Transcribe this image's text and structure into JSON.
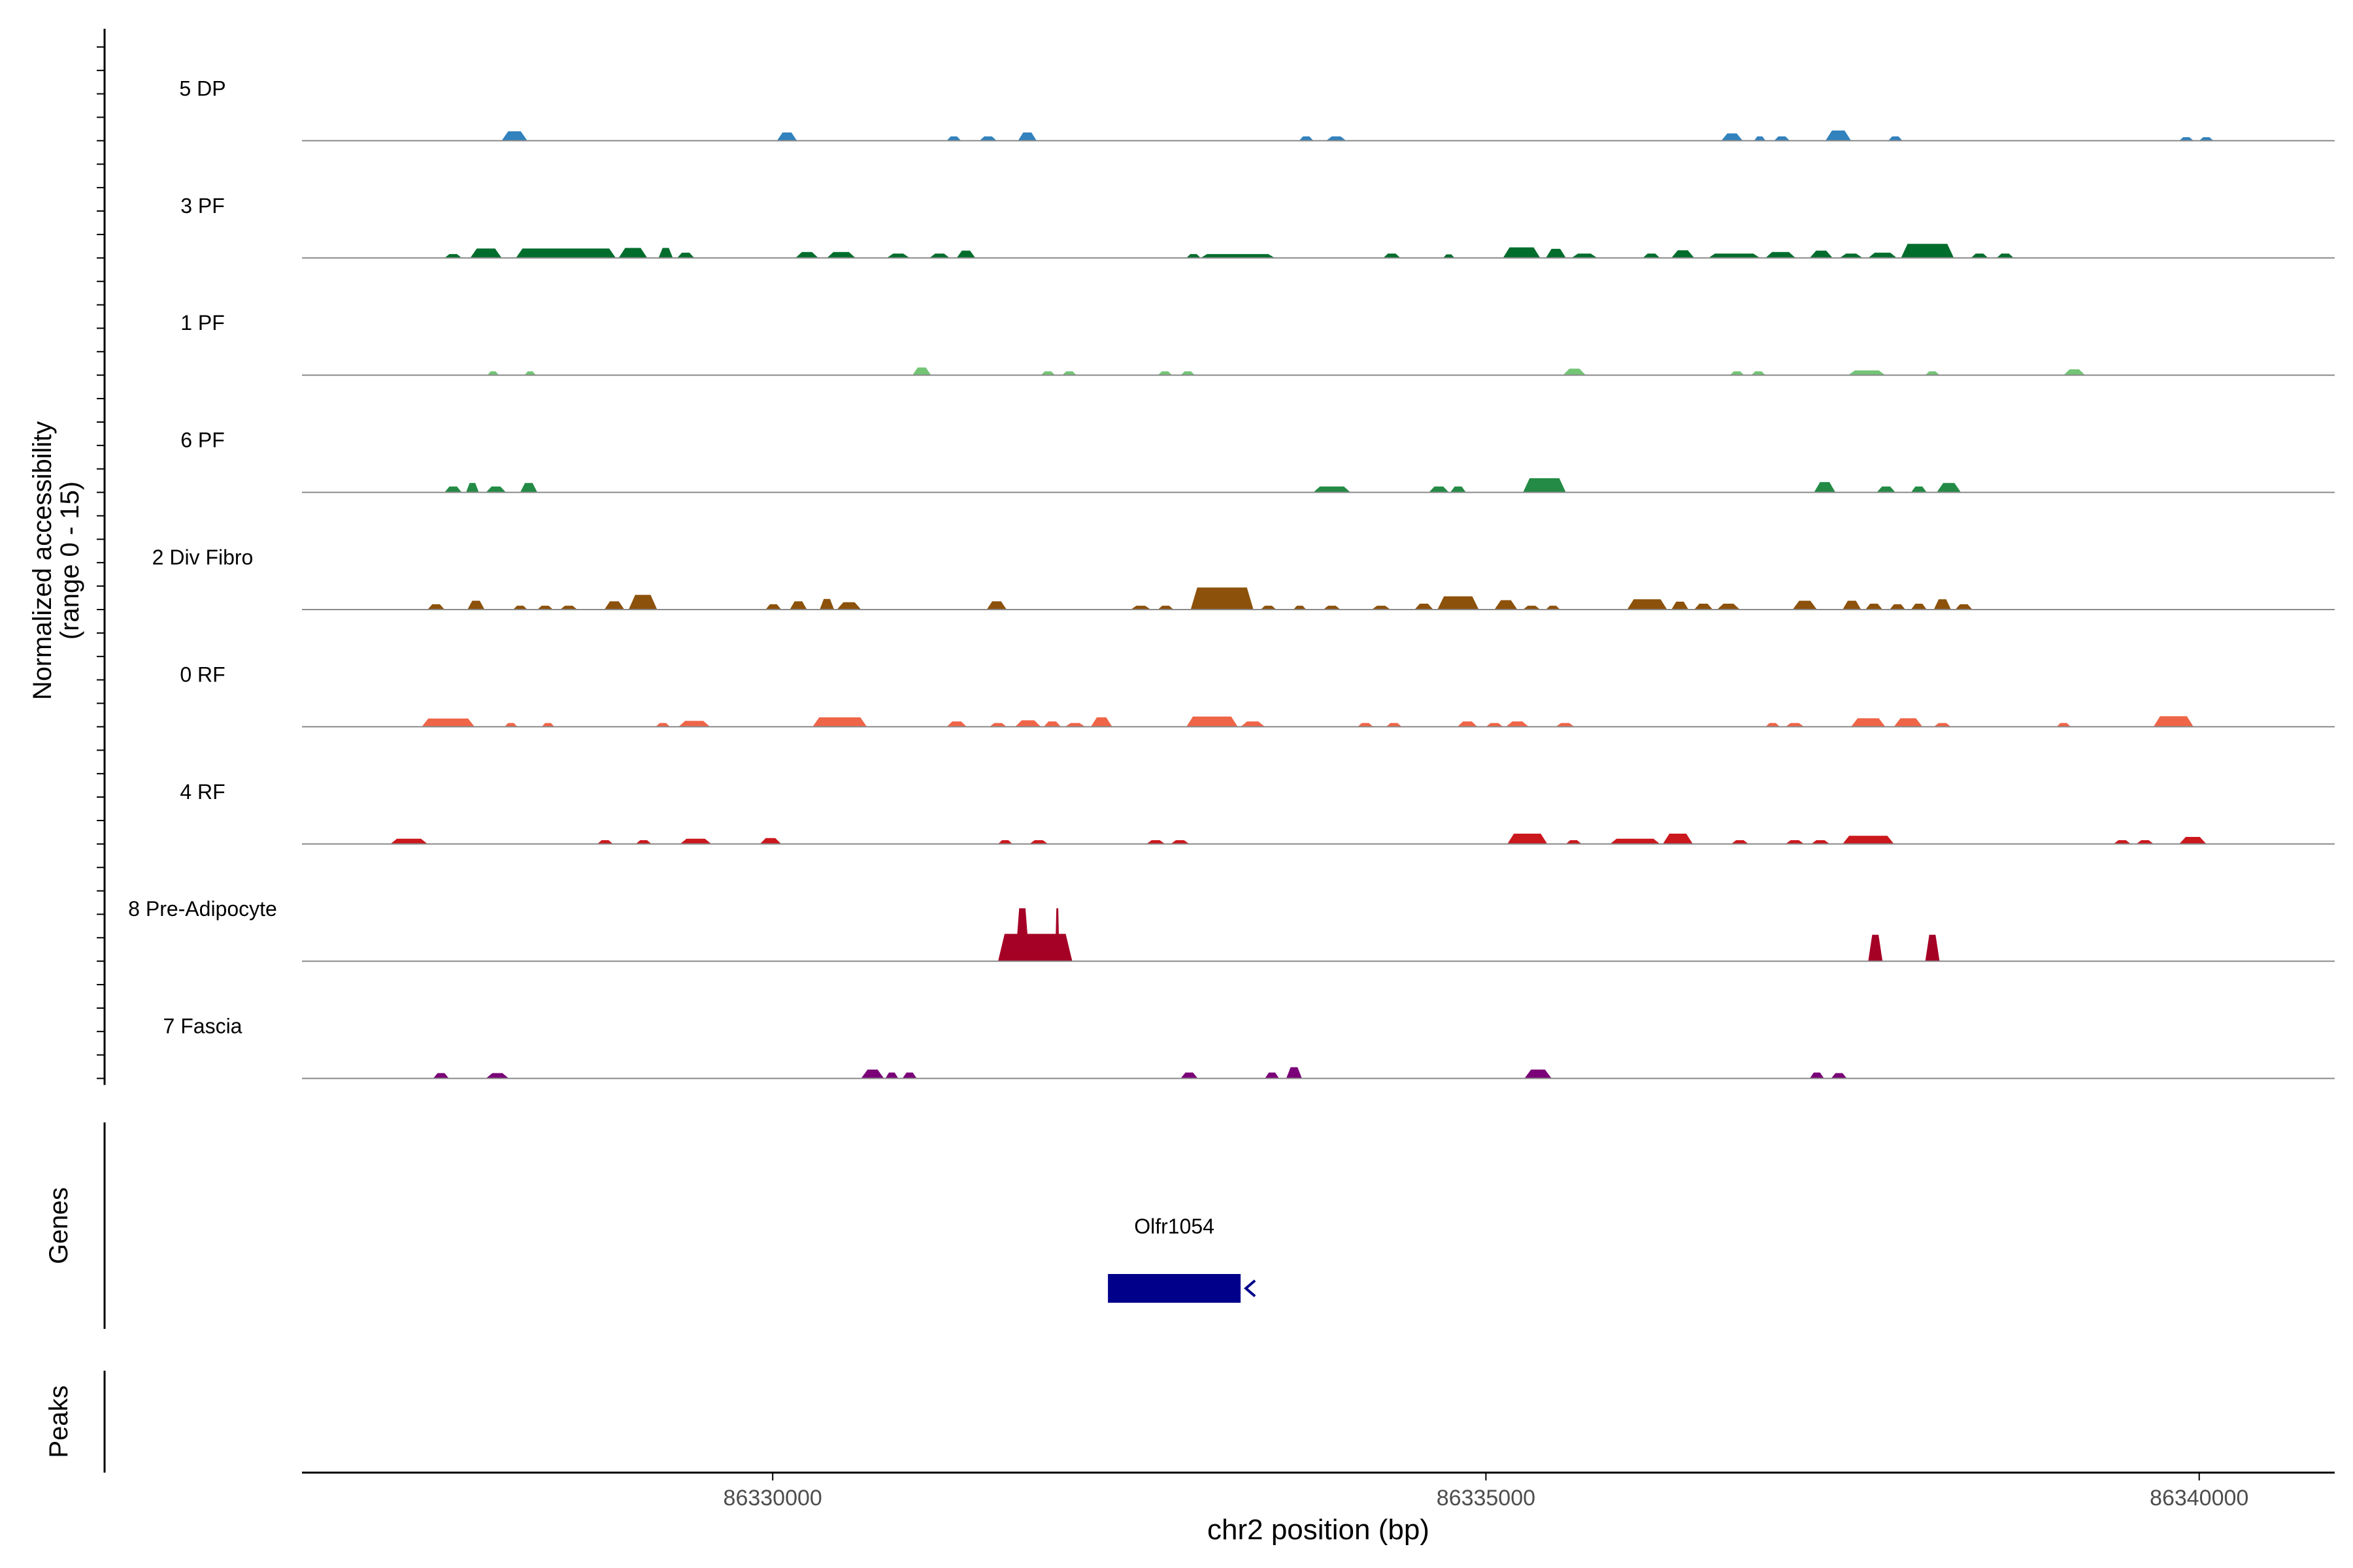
{
  "chart_data": {
    "type": "area",
    "ylabel_line1": "Normalized accessibility",
    "ylabel_line2": "(range 0 - 15)",
    "xlabel": "chr2 position (bp)",
    "xlim": [
      86326700,
      86340950
    ],
    "x_ticks": [
      86330000,
      86335000,
      86340000
    ],
    "x_tick_labels": [
      "86330000",
      "86335000",
      "86340000"
    ],
    "y_range": [
      0,
      15
    ],
    "genes_label": "Genes",
    "peaks_label": "Peaks",
    "genes": [
      {
        "name": "Olfr1054",
        "start": 86332350,
        "end": 86333280,
        "strand": "-",
        "color": "#00008b"
      }
    ],
    "tracks": [
      {
        "name": "5 DP",
        "color": "#3182bd",
        "peaks": [
          [
            86328100,
            86328280,
            3.2
          ],
          [
            86330030,
            86330170,
            2.8
          ],
          [
            86331220,
            86331320,
            1.5
          ],
          [
            86331450,
            86331570,
            1.5
          ],
          [
            86331720,
            86331850,
            2.8
          ],
          [
            86333690,
            86333790,
            1.5
          ],
          [
            86333880,
            86334020,
            1.5
          ],
          [
            86336650,
            86336800,
            2.5
          ],
          [
            86336880,
            86336960,
            1.5
          ],
          [
            86337020,
            86337130,
            1.5
          ],
          [
            86337380,
            86337560,
            3.5
          ],
          [
            86337820,
            86337920,
            1.5
          ],
          [
            86339860,
            86339960,
            1.2
          ],
          [
            86340000,
            86340100,
            1.2
          ]
        ]
      },
      {
        "name": "3 PF",
        "color": "#006d2c",
        "peaks": [
          [
            86327700,
            86327820,
            1.3
          ],
          [
            86327880,
            86328100,
            3.2
          ],
          [
            86328200,
            86328900,
            3.2
          ],
          [
            86328920,
            86329120,
            3.4
          ],
          [
            86329200,
            86329300,
            3.4
          ],
          [
            86329330,
            86329450,
            1.8
          ],
          [
            86330160,
            86330320,
            2.0
          ],
          [
            86330380,
            86330580,
            2.0
          ],
          [
            86330800,
            86330960,
            1.5
          ],
          [
            86331100,
            86331240,
            1.5
          ],
          [
            86331290,
            86331420,
            2.5
          ],
          [
            86332900,
            86333000,
            1.3
          ],
          [
            86333000,
            86333520,
            1.3
          ],
          [
            86334280,
            86334400,
            1.5
          ],
          [
            86334700,
            86334780,
            1.2
          ],
          [
            86335120,
            86335380,
            3.6
          ],
          [
            86335420,
            86335560,
            3.1
          ],
          [
            86335600,
            86335780,
            1.5
          ],
          [
            86336100,
            86336220,
            1.5
          ],
          [
            86336300,
            86336460,
            2.6
          ],
          [
            86336560,
            86336920,
            1.5
          ],
          [
            86336960,
            86337170,
            2.0
          ],
          [
            86337270,
            86337430,
            2.5
          ],
          [
            86337480,
            86337640,
            1.5
          ],
          [
            86337680,
            86337880,
            1.8
          ],
          [
            86337910,
            86338280,
            4.8
          ],
          [
            86338400,
            86338520,
            1.5
          ],
          [
            86338580,
            86338700,
            1.5
          ]
        ]
      },
      {
        "name": "1 PF",
        "color": "#74c476",
        "peaks": [
          [
            86328000,
            86328080,
            1.3
          ],
          [
            86328260,
            86328340,
            1.3
          ],
          [
            86330980,
            86331110,
            2.6
          ],
          [
            86331880,
            86331980,
            1.3
          ],
          [
            86332030,
            86332130,
            1.3
          ],
          [
            86332700,
            86332800,
            1.3
          ],
          [
            86332860,
            86332960,
            1.3
          ],
          [
            86335540,
            86335700,
            2.2
          ],
          [
            86336710,
            86336810,
            1.3
          ],
          [
            86336860,
            86336960,
            1.3
          ],
          [
            86337540,
            86337800,
            1.6
          ],
          [
            86338080,
            86338180,
            1.3
          ],
          [
            86339050,
            86339200,
            2.0
          ]
        ]
      },
      {
        "name": "6 PF",
        "color": "#238b45",
        "peaks": [
          [
            86327700,
            86327820,
            2.0
          ],
          [
            86327850,
            86327940,
            3.2
          ],
          [
            86327990,
            86328130,
            2.0
          ],
          [
            86328230,
            86328350,
            3.2
          ],
          [
            86333790,
            86334050,
            2.0
          ],
          [
            86334600,
            86334740,
            2.0
          ],
          [
            86334750,
            86334860,
            2.0
          ],
          [
            86335260,
            86335560,
            4.8
          ],
          [
            86337300,
            86337450,
            3.5
          ],
          [
            86337740,
            86337870,
            2.0
          ],
          [
            86337980,
            86338090,
            2.0
          ],
          [
            86338160,
            86338330,
            3.2
          ]
        ]
      },
      {
        "name": "2 Div Fibro",
        "color": "#8c510a",
        "peaks": [
          [
            86327580,
            86327700,
            1.8
          ],
          [
            86327860,
            86327980,
            3.0
          ],
          [
            86328180,
            86328280,
            1.3
          ],
          [
            86328350,
            86328460,
            1.3
          ],
          [
            86328510,
            86328630,
            1.3
          ],
          [
            86328820,
            86328960,
            2.8
          ],
          [
            86328990,
            86329190,
            5.0
          ],
          [
            86329950,
            86330060,
            1.8
          ],
          [
            86330120,
            86330240,
            2.8
          ],
          [
            86330330,
            86330430,
            3.6
          ],
          [
            86330450,
            86330620,
            2.5
          ],
          [
            86331500,
            86331640,
            2.8
          ],
          [
            86332510,
            86332650,
            1.3
          ],
          [
            86332700,
            86332810,
            1.3
          ],
          [
            86332930,
            86333370,
            7.5
          ],
          [
            86333420,
            86333530,
            1.3
          ],
          [
            86333650,
            86333740,
            1.3
          ],
          [
            86333860,
            86333980,
            1.3
          ],
          [
            86334200,
            86334330,
            1.3
          ],
          [
            86334500,
            86334630,
            2.0
          ],
          [
            86334660,
            86334950,
            4.5
          ],
          [
            86335060,
            86335220,
            3.2
          ],
          [
            86335260,
            86335380,
            1.3
          ],
          [
            86335420,
            86335520,
            1.3
          ],
          [
            86335990,
            86336270,
            3.5
          ],
          [
            86336300,
            86336420,
            2.7
          ],
          [
            86336460,
            86336590,
            2.0
          ],
          [
            86336620,
            86336780,
            2.0
          ],
          [
            86337150,
            86337320,
            3.0
          ],
          [
            86337500,
            86337630,
            3.0
          ],
          [
            86337660,
            86337780,
            2.0
          ],
          [
            86337830,
            86337940,
            1.8
          ],
          [
            86337980,
            86338090,
            2.0
          ],
          [
            86338140,
            86338260,
            3.5
          ],
          [
            86338290,
            86338410,
            1.8
          ]
        ]
      },
      {
        "name": "0 RF",
        "color": "#ef6548",
        "peaks": [
          [
            86327540,
            86327910,
            2.8
          ],
          [
            86328120,
            86328210,
            1.3
          ],
          [
            86328380,
            86328470,
            1.3
          ],
          [
            86329180,
            86329280,
            1.3
          ],
          [
            86329340,
            86329560,
            2.0
          ],
          [
            86330280,
            86330660,
            3.2
          ],
          [
            86331220,
            86331360,
            1.8
          ],
          [
            86331520,
            86331640,
            1.3
          ],
          [
            86331700,
            86331880,
            2.2
          ],
          [
            86331900,
            86332020,
            1.8
          ],
          [
            86332050,
            86332190,
            1.3
          ],
          [
            86332230,
            86332380,
            3.2
          ],
          [
            86332900,
            86333260,
            3.5
          ],
          [
            86333280,
            86333450,
            1.8
          ],
          [
            86334100,
            86334210,
            1.3
          ],
          [
            86334300,
            86334410,
            1.3
          ],
          [
            86334800,
            86334940,
            1.8
          ],
          [
            86335000,
            86335120,
            1.3
          ],
          [
            86335140,
            86335300,
            1.8
          ],
          [
            86335490,
            86335620,
            1.3
          ],
          [
            86336960,
            86337060,
            1.3
          ],
          [
            86337100,
            86337230,
            1.3
          ],
          [
            86337560,
            86337800,
            2.9
          ],
          [
            86337860,
            86338060,
            2.9
          ],
          [
            86338140,
            86338260,
            1.3
          ],
          [
            86339000,
            86339100,
            1.3
          ],
          [
            86339680,
            86339960,
            3.6
          ]
        ]
      },
      {
        "name": "4 RF",
        "color": "#cb181d",
        "peaks": [
          [
            86327320,
            86327580,
            1.8
          ],
          [
            86328770,
            86328880,
            1.3
          ],
          [
            86329040,
            86329150,
            1.3
          ],
          [
            86329350,
            86329570,
            1.8
          ],
          [
            86329910,
            86330060,
            2.0
          ],
          [
            86331580,
            86331680,
            1.3
          ],
          [
            86331800,
            86331930,
            1.3
          ],
          [
            86332620,
            86332750,
            1.3
          ],
          [
            86332790,
            86332920,
            1.3
          ],
          [
            86335150,
            86335430,
            3.5
          ],
          [
            86335560,
            86335670,
            1.3
          ],
          [
            86335870,
            86336220,
            1.8
          ],
          [
            86336240,
            86336450,
            3.5
          ],
          [
            86336720,
            86336840,
            1.3
          ],
          [
            86337100,
            86337230,
            1.3
          ],
          [
            86337280,
            86337410,
            1.3
          ],
          [
            86337500,
            86337860,
            2.8
          ],
          [
            86339400,
            86339520,
            1.3
          ],
          [
            86339560,
            86339680,
            1.3
          ],
          [
            86339860,
            86340050,
            2.4
          ]
        ]
      },
      {
        "name": "8 Pre-Adipocyte",
        "color": "#a50026",
        "peaks": [
          [
            86331580,
            86332100,
            9.3
          ],
          [
            86331700,
            86331800,
            18.0
          ],
          [
            86331980,
            86332010,
            18.0
          ],
          [
            86337680,
            86337780,
            9.0
          ],
          [
            86338080,
            86338180,
            9.0
          ]
        ]
      },
      {
        "name": "7 Fascia",
        "color": "#7a0177",
        "peaks": [
          [
            86327620,
            86327730,
            1.8
          ],
          [
            86327990,
            86328150,
            1.8
          ],
          [
            86330620,
            86330780,
            3.0
          ],
          [
            86330790,
            86330880,
            2.0
          ],
          [
            86330910,
            86331010,
            2.0
          ],
          [
            86332860,
            86332980,
            2.0
          ],
          [
            86333450,
            86333550,
            2.0
          ],
          [
            86333600,
            86333710,
            3.8
          ],
          [
            86335270,
            86335460,
            3.0
          ],
          [
            86337270,
            86337370,
            2.0
          ],
          [
            86337420,
            86337530,
            1.8
          ]
        ]
      }
    ]
  }
}
